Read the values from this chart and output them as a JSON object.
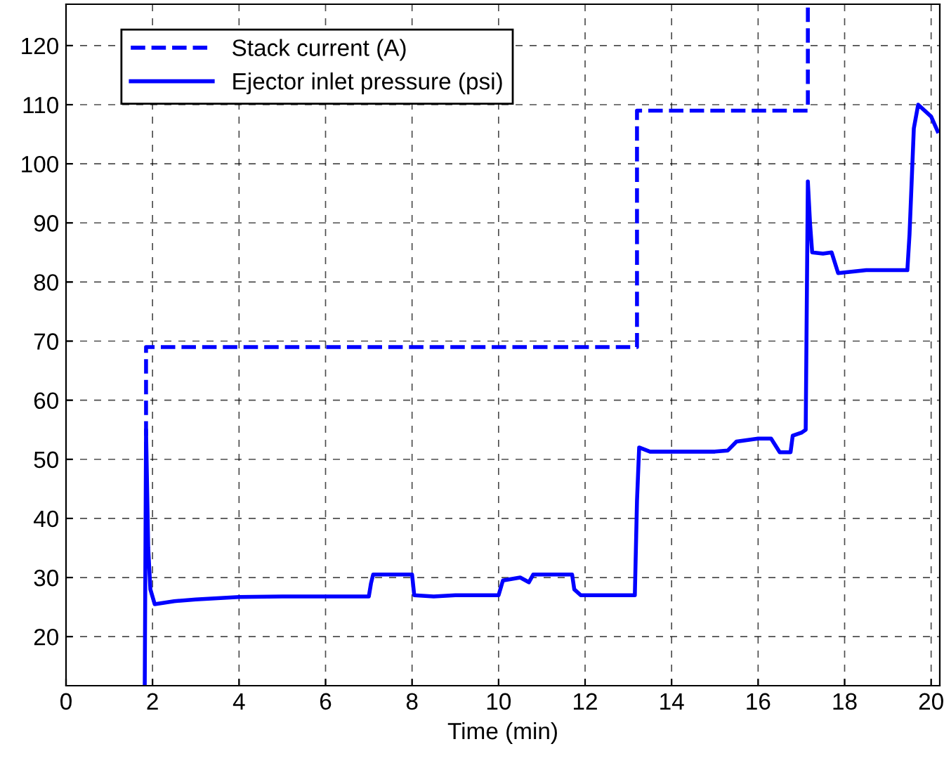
{
  "chart_data": {
    "type": "line",
    "xlabel": "Time (min)",
    "xlim": [
      0,
      20.2
    ],
    "ylim": [
      11.7,
      127
    ],
    "xticks": [
      0,
      2,
      4,
      6,
      8,
      10,
      12,
      14,
      16,
      18,
      20
    ],
    "yticks": [
      20,
      30,
      40,
      50,
      60,
      70,
      80,
      90,
      100,
      110,
      120
    ],
    "grid": true,
    "legend": "top left",
    "series": [
      {
        "name": "Stack current (A)",
        "color": "#0000ff",
        "line_style": "dashed",
        "x": [
          1.85,
          1.85,
          13.2,
          13.2,
          17.15,
          17.15
        ],
        "values": [
          40,
          69,
          69,
          109,
          109,
          127
        ]
      },
      {
        "name": "Ejector inlet pressure (psi)",
        "color": "#0000ff",
        "line_style": "solid",
        "x": [
          1.82,
          1.85,
          1.9,
          1.95,
          2.05,
          2.5,
          3,
          4,
          5,
          6,
          7,
          7.05,
          7.1,
          8,
          8.05,
          8.5,
          9,
          10,
          10.1,
          10.5,
          10.7,
          10.8,
          11.7,
          11.75,
          11.9,
          13.15,
          13.2,
          13.25,
          13.5,
          14,
          15,
          15.3,
          15.5,
          16,
          16.3,
          16.5,
          16.75,
          16.8,
          17.0,
          17.1,
          17.15,
          17.2,
          17.25,
          17.5,
          17.7,
          17.85,
          18.5,
          19.45,
          19.5,
          19.6,
          19.7,
          20,
          20.15
        ],
        "values": [
          11.7,
          55,
          35,
          28,
          25.5,
          26,
          26.3,
          26.7,
          26.8,
          26.8,
          26.8,
          29,
          30.5,
          30.5,
          27,
          26.8,
          27,
          27,
          29.5,
          30,
          29.2,
          30.5,
          30.5,
          28,
          27,
          27,
          43,
          52,
          51.3,
          51.3,
          51.3,
          51.5,
          53,
          53.5,
          53.5,
          51.2,
          51.2,
          54,
          54.5,
          55,
          97,
          90,
          85,
          84.8,
          85,
          81.5,
          82,
          82,
          88,
          106,
          110,
          108,
          105.5
        ]
      }
    ]
  }
}
